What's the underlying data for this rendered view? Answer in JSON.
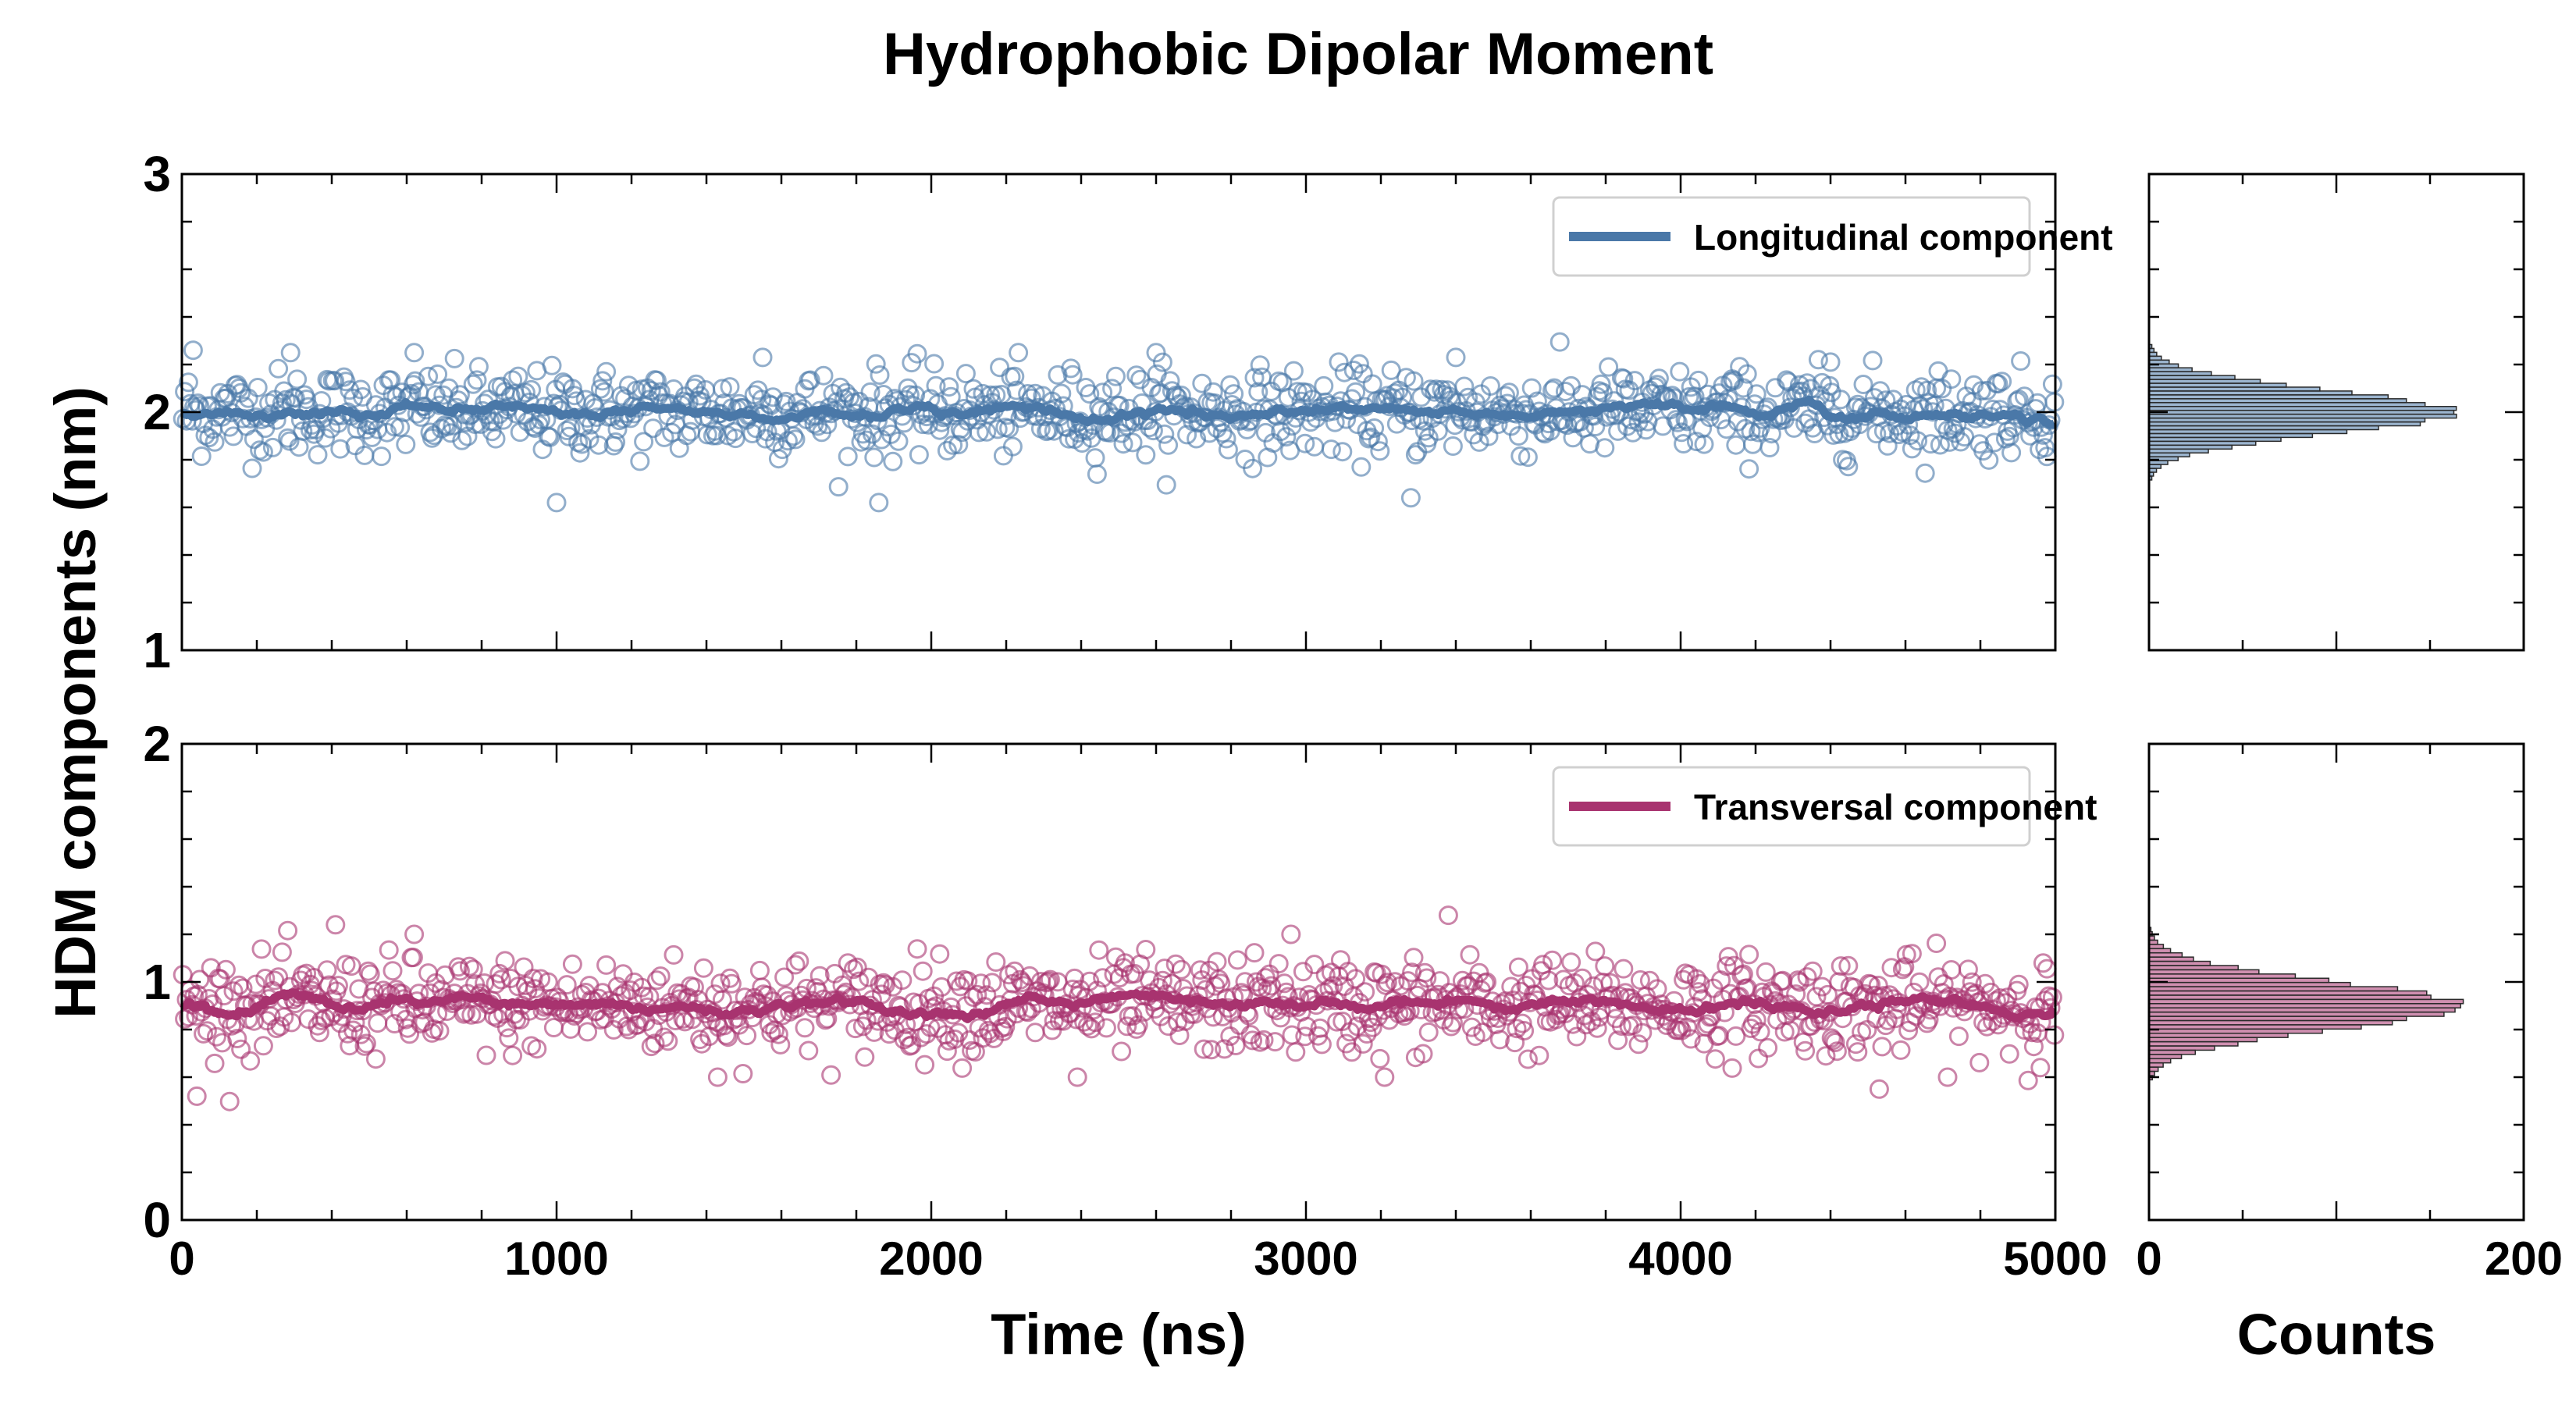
{
  "chart_data": {
    "type": "scatter",
    "title": "Hydrophobic Dipolar Moment",
    "ylabel": "HDM components (nm)",
    "xlabel_time": "Time (ns)",
    "xlabel_counts": "Counts",
    "colors": {
      "longitudinal": "#4a78a8",
      "transversal": "#a8336f",
      "hist": "#2a2a2a"
    },
    "panels": [
      {
        "id": "top",
        "series_name": "Longitudinal component",
        "color_key": "longitudinal",
        "xlim": [
          0,
          5000
        ],
        "ylim": [
          1,
          3
        ],
        "yticks": [
          1,
          2,
          3
        ],
        "xticks": [
          0,
          1000,
          2000,
          3000,
          4000,
          5000
        ],
        "mean": 2.0,
        "spread": 0.09,
        "n_points": 1000,
        "outliers": [
          [
            30,
            2.26
          ],
          [
            290,
            2.25
          ],
          [
            620,
            2.25
          ],
          [
            1000,
            1.62
          ],
          [
            1550,
            2.23
          ],
          [
            1860,
            1.62
          ],
          [
            2600,
            2.25
          ],
          [
            3280,
            1.64
          ],
          [
            3400,
            2.23
          ],
          [
            4400,
            2.21
          ]
        ],
        "hist": {
          "xlim": [
            0,
            200
          ],
          "xticks": [
            0,
            200
          ],
          "peak_count": 170,
          "bins": 40,
          "range": [
            1.65,
            2.3
          ]
        }
      },
      {
        "id": "bottom",
        "series_name": "Transversal component",
        "color_key": "transversal",
        "xlim": [
          0,
          5000
        ],
        "ylim": [
          0,
          2
        ],
        "yticks": [
          0,
          1,
          2
        ],
        "xticks": [
          0,
          1000,
          2000,
          3000,
          4000,
          5000
        ],
        "mean": 0.9,
        "spread": 0.1,
        "n_points": 1000,
        "outliers": [
          [
            40,
            0.52
          ],
          [
            410,
            1.24
          ],
          [
            1430,
            0.6
          ],
          [
            2390,
            0.6
          ],
          [
            3210,
            0.6
          ],
          [
            3380,
            1.28
          ],
          [
            4530,
            0.55
          ],
          [
            4960,
            0.64
          ],
          [
            620,
            1.2
          ],
          [
            2960,
            1.2
          ]
        ],
        "hist": {
          "xlim": [
            0,
            200
          ],
          "xticks": [
            0,
            200
          ],
          "peak_count": 172,
          "bins": 45,
          "range": [
            0.5,
            1.3
          ]
        }
      }
    ]
  }
}
